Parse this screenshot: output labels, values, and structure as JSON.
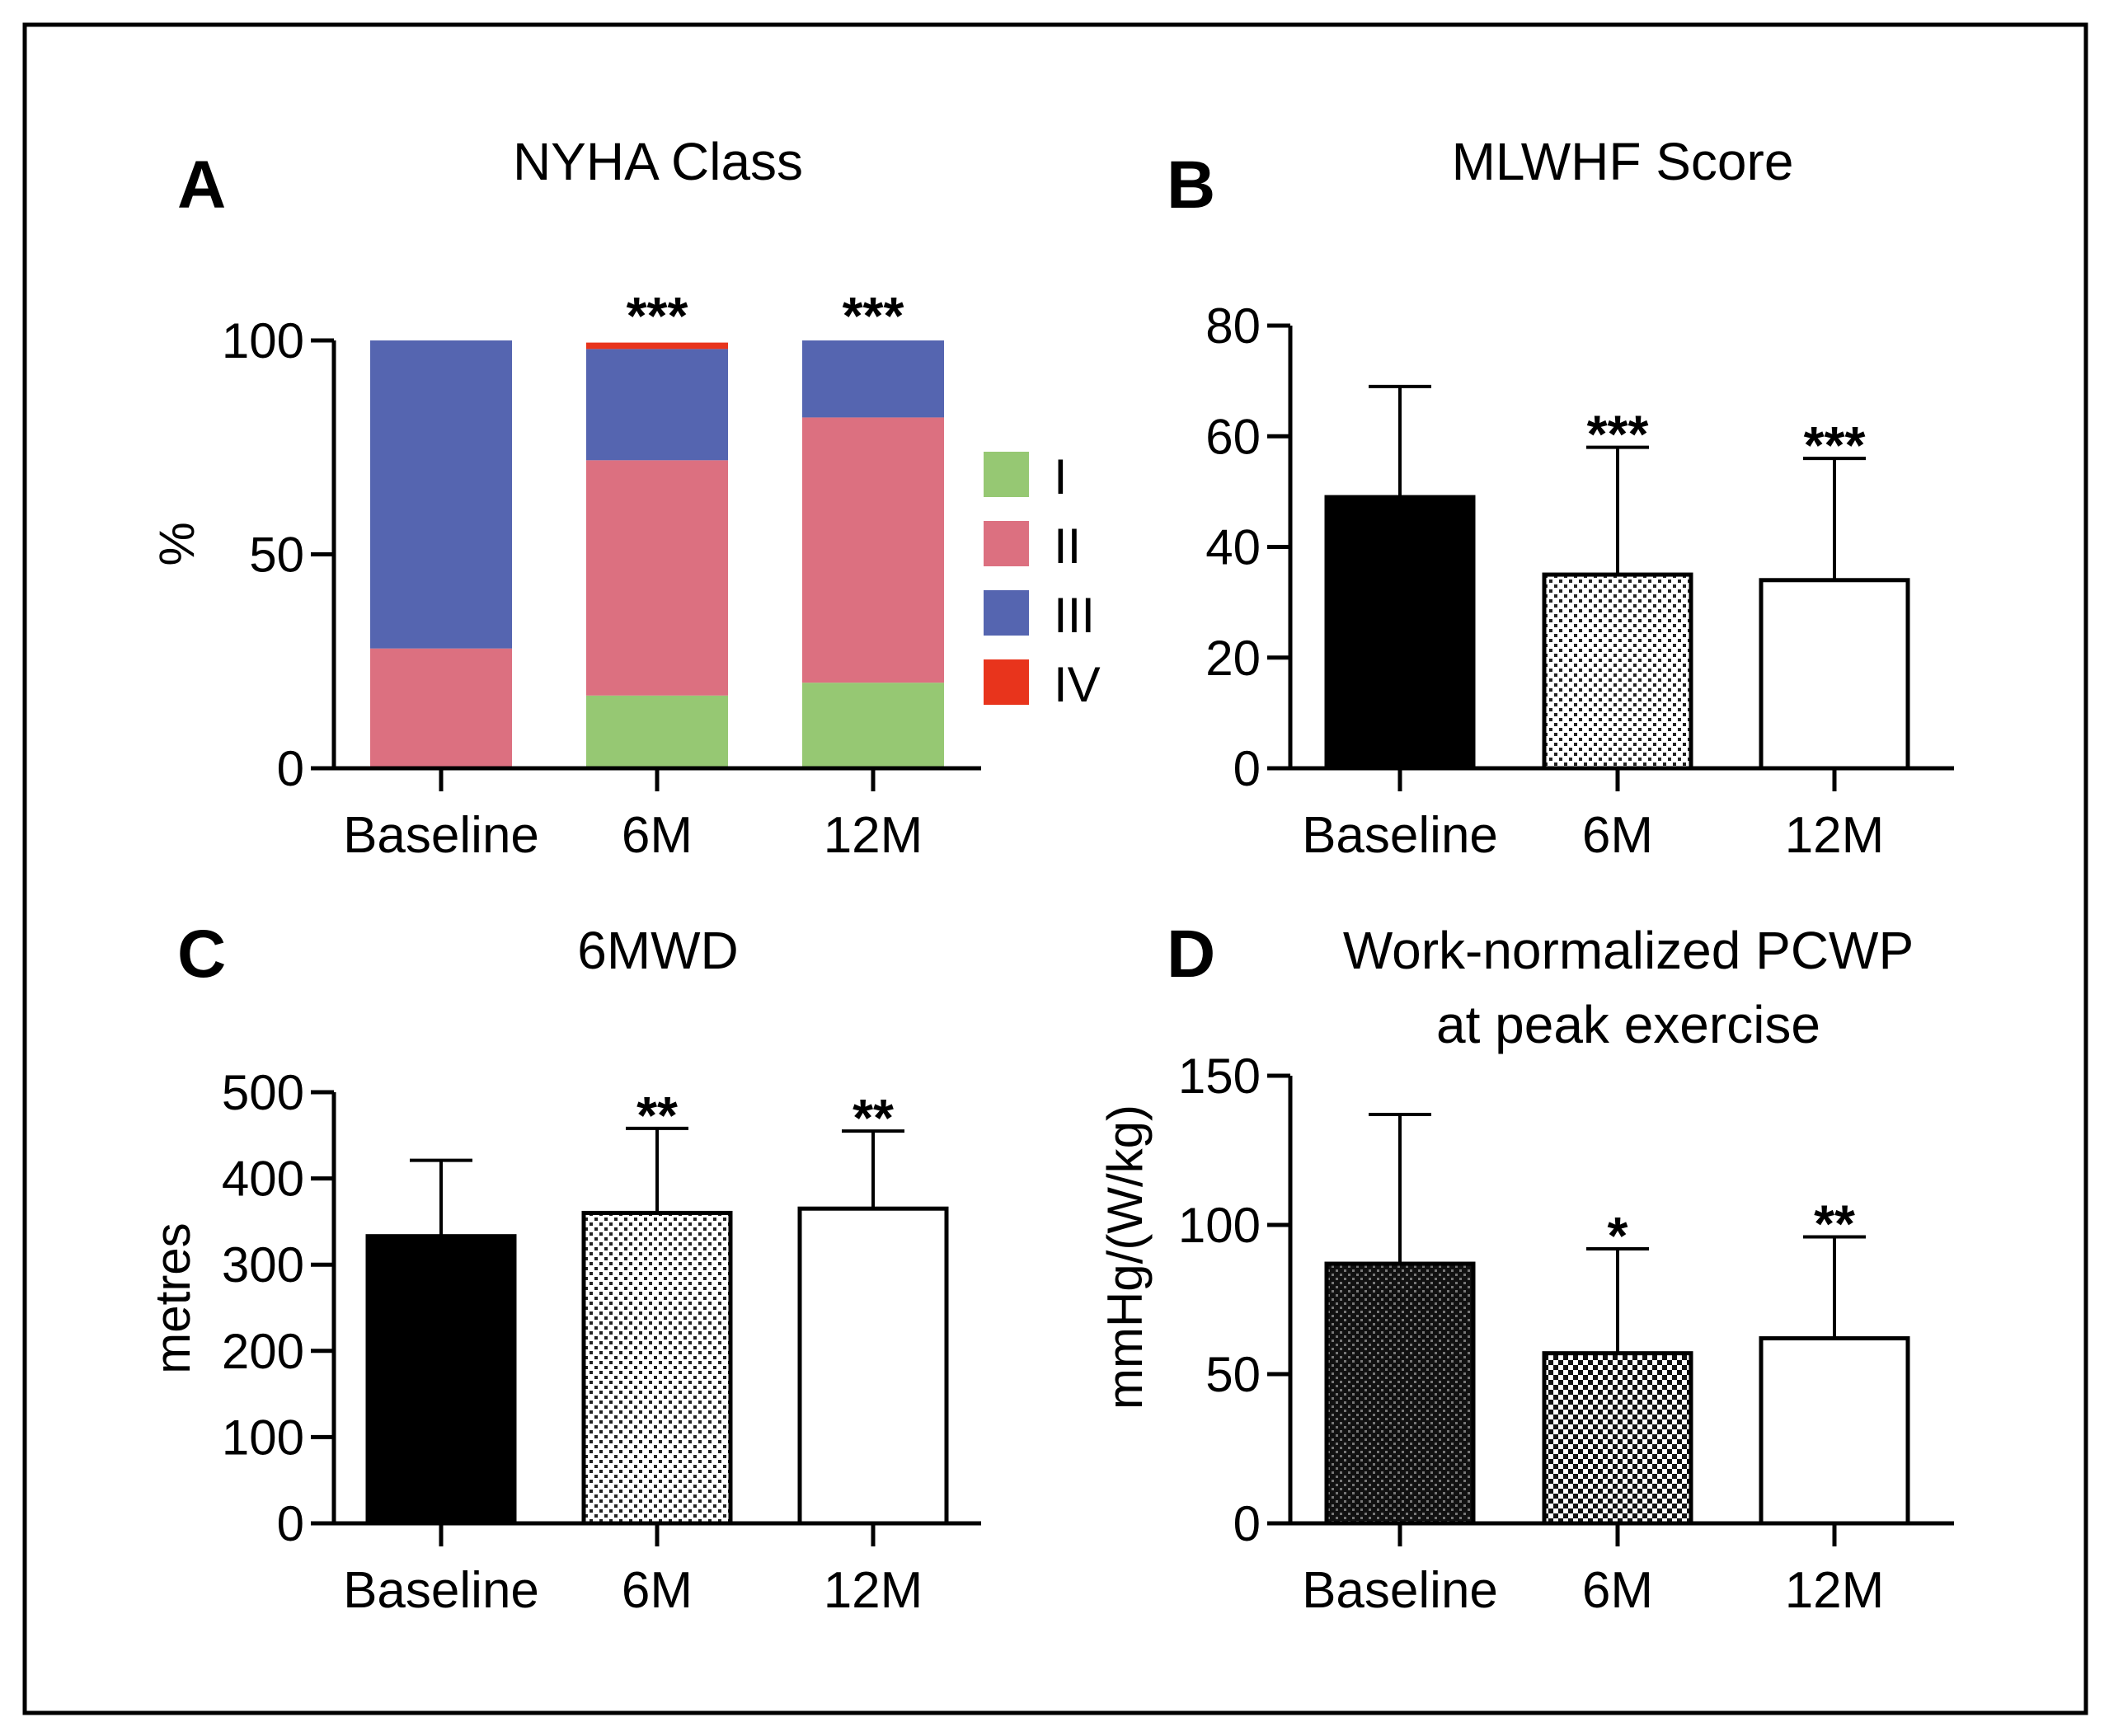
{
  "chart_data": [
    {
      "panel": "A",
      "type": "bar",
      "stacked": true,
      "title": "NYHA Class",
      "xlabel": "",
      "ylabel": "%",
      "ylim": [
        0,
        100
      ],
      "yticks": [
        0,
        50,
        100
      ],
      "categories": [
        "Baseline",
        "6M",
        "12M"
      ],
      "series": [
        {
          "name": "I",
          "color": "#96c873",
          "values": [
            0,
            17,
            20
          ]
        },
        {
          "name": "II",
          "color": "#dc7080",
          "values": [
            28,
            55,
            62
          ]
        },
        {
          "name": "III",
          "color": "#5565b0",
          "values": [
            72,
            26,
            18
          ]
        },
        {
          "name": "IV",
          "color": "#e8341c",
          "values": [
            0,
            1.5,
            0
          ]
        }
      ],
      "significance": [
        "",
        "***",
        "***"
      ]
    },
    {
      "panel": "B",
      "type": "bar",
      "title": "MLWHF Score",
      "xlabel": "",
      "ylabel": "",
      "ylim": [
        0,
        80
      ],
      "yticks": [
        0,
        20,
        40,
        60,
        80
      ],
      "categories": [
        "Baseline",
        "6M",
        "12M"
      ],
      "values": [
        49,
        35,
        34
      ],
      "error_upper": [
        69,
        58,
        56
      ],
      "fills": [
        "solid",
        "fine-dots",
        "white"
      ],
      "significance": [
        "",
        "***",
        "***"
      ]
    },
    {
      "panel": "C",
      "type": "bar",
      "title": "6MWD",
      "xlabel": "",
      "ylabel": "metres",
      "ylim": [
        0,
        500
      ],
      "yticks": [
        0,
        100,
        200,
        300,
        400,
        500
      ],
      "categories": [
        "Baseline",
        "6M",
        "12M"
      ],
      "values": [
        333,
        360,
        365
      ],
      "error_upper": [
        421,
        458,
        455
      ],
      "fills": [
        "solid",
        "fine-dots",
        "white"
      ],
      "significance": [
        "",
        "**",
        "**"
      ]
    },
    {
      "panel": "D",
      "type": "bar",
      "title": "Work-normalized PCWP at peak exercise",
      "title_lines": [
        "Work-normalized PCWP",
        "at peak exercise"
      ],
      "xlabel": "",
      "ylabel": "mmHg/(W/kg)",
      "ylim": [
        0,
        150
      ],
      "yticks": [
        0,
        50,
        100,
        150
      ],
      "categories": [
        "Baseline",
        "6M",
        "12M"
      ],
      "values": [
        87,
        57,
        62
      ],
      "error_upper": [
        137,
        92,
        96
      ],
      "fills": [
        "dark-check",
        "check",
        "white"
      ],
      "significance": [
        "",
        "*",
        "**"
      ]
    }
  ]
}
